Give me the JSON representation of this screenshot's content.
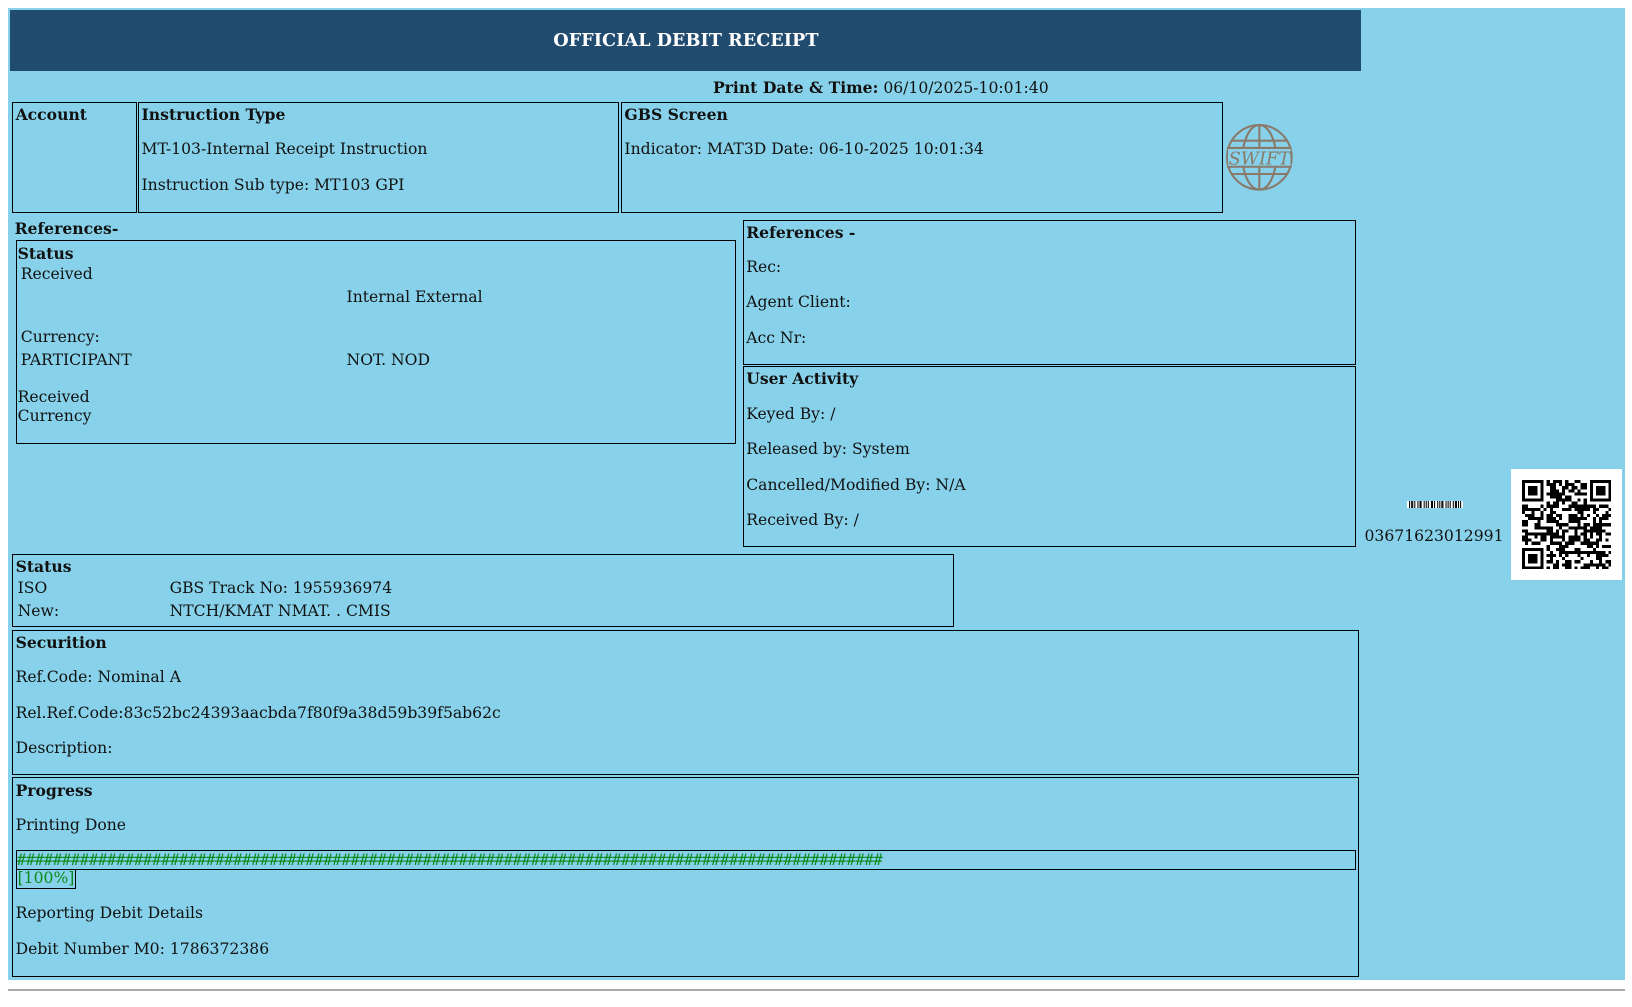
{
  "title": "OFFICIAL DEBIT RECEIPT",
  "print": {
    "label": "Print Date & Time:",
    "value": "06/10/2025-10:01:40"
  },
  "account": {
    "heading": "Account"
  },
  "instruction": {
    "heading": "Instruction Type",
    "type": "MT-103-Internal Receipt Instruction",
    "subtype": "Instruction Sub type: MT103 GPI"
  },
  "gbs": {
    "heading": "GBS Screen",
    "indicator": "Indicator: MAT3D Date: 06-10-2025 10:01:34"
  },
  "swift_logo": "SWIFT",
  "references_left": {
    "heading": "References-",
    "status_heading": "Status",
    "received": "Received",
    "internal_external": "Internal External",
    "currency": "Currency:",
    "participant": "PARTICIPANT",
    "not_nod": "NOT. NOD",
    "received2": "Received",
    "currency2": "Currency"
  },
  "references_right": {
    "heading": "References -",
    "rec": "Rec:",
    "agent": "Agent Client:",
    "acc": "Acc Nr:"
  },
  "user_activity": {
    "heading": "User Activity",
    "keyed": "Keyed By: /",
    "released": "Released by: System",
    "cancelled": "Cancelled/Modified By: N/A",
    "received": "Received By: /"
  },
  "barcode_number": "03671623012991",
  "status": {
    "heading": "Status",
    "iso": "ISO",
    "track": "GBS Track No: 1955936974",
    "new": "New:",
    "new_value": "NTCH/KMAT NMAT. . CMIS"
  },
  "securition": {
    "heading": "Securition",
    "ref": "Ref.Code: Nominal A",
    "relref": "Rel.Ref.Code:83c52bc24393aacbda7f80f9a38d59b39f5ab62c",
    "desc": "Description:"
  },
  "progress": {
    "heading": "Progress",
    "printing": "Printing Done",
    "bar": "################################################################################################",
    "percent": "[100%]",
    "percent_value": 100,
    "reporting": "Reporting Debit Details",
    "debit": "Debit Number M0: 1786372386"
  },
  "colors": {
    "background": "#87d2ea",
    "header": "#214c6f",
    "progress": "#0a8a1a",
    "logo": "#8a7a6a"
  }
}
